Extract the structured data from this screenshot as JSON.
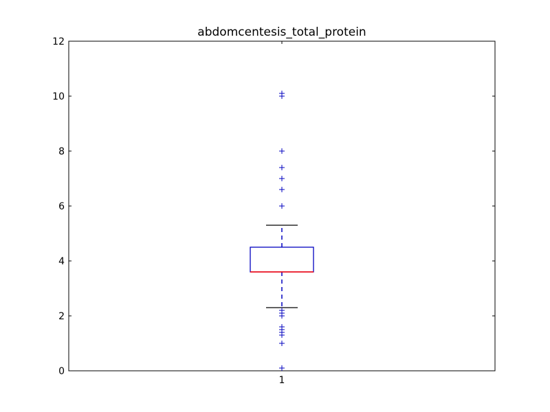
{
  "chart_data": {
    "type": "boxplot",
    "title": "abdomcentesis_total_protein",
    "xlabel": "",
    "ylabel": "",
    "ylim": [
      0,
      12
    ],
    "y_ticks": [
      0,
      2,
      4,
      6,
      8,
      10,
      12
    ],
    "categories": [
      "1"
    ],
    "grid": false,
    "legend": "none",
    "series": [
      {
        "whisker_low": 2.3,
        "q1": 3.6,
        "median": 3.6,
        "q3": 4.5,
        "whisker_high": 5.3,
        "outliers": [
          0.1,
          1.0,
          1.0,
          1.3,
          1.4,
          1.5,
          1.6,
          2.0,
          2.0,
          2.1,
          2.2,
          6.0,
          6.6,
          7.0,
          7.0,
          7.4,
          8.0,
          10.0,
          10.1
        ]
      }
    ],
    "colors": {
      "box": "#0000bf",
      "median": "#ff0000",
      "whisker": "#0000bf",
      "cap": "#000000",
      "outlier": "#0000bf",
      "axes": "#000000"
    }
  }
}
